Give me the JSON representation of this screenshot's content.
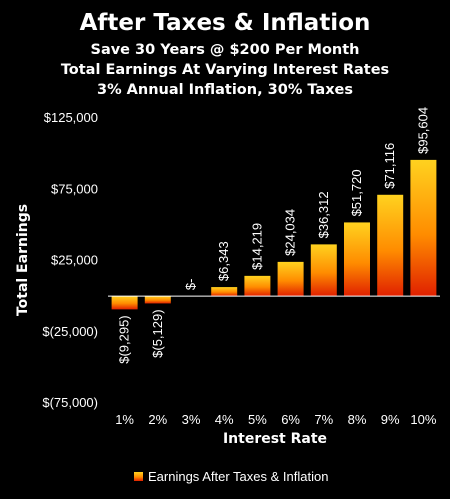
{
  "chart_data": {
    "type": "bar",
    "title": "After Taxes & Inflation",
    "subtitles": [
      "Save 30 Years @ $200 Per Month",
      "Total Earnings At Varying Interest Rates",
      "3% Annual Inflation, 30% Taxes"
    ],
    "categories": [
      "1%",
      "2%",
      "3%",
      "4%",
      "5%",
      "6%",
      "7%",
      "8%",
      "9%",
      "10%"
    ],
    "series": [
      {
        "name": "Earnings After Taxes & Inflation",
        "values": [
          -9295,
          -5129,
          0,
          6343,
          14219,
          24034,
          36312,
          51720,
          71116,
          95604
        ]
      }
    ],
    "data_labels": [
      "$(9,295)",
      "$(5,129)",
      "$-",
      "$6,343",
      "$14,219",
      "$24,034",
      "$36,312",
      "$51,720",
      "$71,116",
      "$95,604"
    ],
    "y_ticks": [
      125000,
      75000,
      25000,
      -25000,
      -75000
    ],
    "y_tick_labels": [
      "$125,000",
      "$75,000",
      "$25,000",
      "$(25,000)",
      "$(75,000)"
    ],
    "ylim": [
      -75000,
      125000
    ],
    "xlabel": "Interest Rate",
    "ylabel": "Total Earnings",
    "legend_position": "bottom",
    "grid": false,
    "colors": {
      "bar_top": "#ffd21f",
      "bar_mid": "#ff8c00",
      "bar_bottom": "#e02000",
      "background": "#000000",
      "text": "#ffffff",
      "axis": "#ffffff"
    }
  }
}
